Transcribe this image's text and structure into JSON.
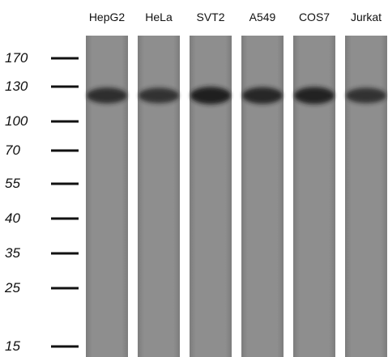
{
  "lanes": [
    {
      "label": "HepG2",
      "band_intensity": 0.75
    },
    {
      "label": "HeLa",
      "band_intensity": 0.7
    },
    {
      "label": "SVT2",
      "band_intensity": 0.95
    },
    {
      "label": "A549",
      "band_intensity": 0.85
    },
    {
      "label": "COS7",
      "band_intensity": 0.9
    },
    {
      "label": "Jurkat",
      "band_intensity": 0.7
    }
  ],
  "markers": [
    "170",
    "130",
    "100",
    "70",
    "55",
    "40",
    "35",
    "25",
    "15"
  ],
  "colors": {
    "lane": "#8c8c8c",
    "band": "#1a1a1a",
    "background": "#ffffff",
    "text": "#111111"
  }
}
